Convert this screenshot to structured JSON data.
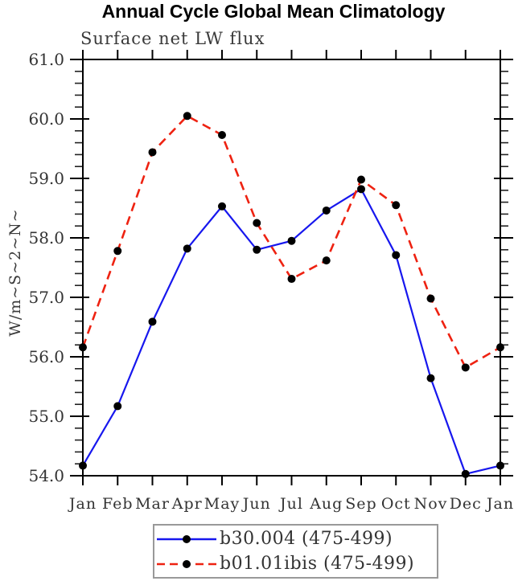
{
  "chart_data": {
    "type": "line",
    "title": "Annual Cycle Global Mean Climatology",
    "subtitle": "Surface net LW flux",
    "xlabel": "",
    "ylabel": "W/m~S~2~N~",
    "categories": [
      "Jan",
      "Feb",
      "Mar",
      "Apr",
      "May",
      "Jun",
      "Jul",
      "Aug",
      "Sep",
      "Oct",
      "Nov",
      "Dec",
      "Jan"
    ],
    "ylim": [
      54.0,
      61.0
    ],
    "ytick_interval": 1.0,
    "ytick_minor_interval": 0.2,
    "ytick_labels": [
      "54.0",
      "55.0",
      "56.0",
      "57.0",
      "58.0",
      "59.0",
      "60.0",
      "61.0"
    ],
    "grid": false,
    "legend_position": "bottom-center",
    "frame_color": "#000000",
    "series": [
      {
        "name": "b30.004 (475-499)",
        "color": "#1717ee",
        "style": "solid",
        "marker": "filled-circle",
        "marker_color": "#000000",
        "values": [
          54.17,
          55.17,
          56.59,
          57.82,
          58.53,
          57.8,
          57.95,
          58.46,
          58.82,
          57.71,
          55.64,
          54.03,
          54.17
        ]
      },
      {
        "name": "b01.01ibis (475-499)",
        "color": "#ee2211",
        "style": "dashed",
        "marker": "filled-circle",
        "marker_color": "#000000",
        "values": [
          56.16,
          57.78,
          59.44,
          60.05,
          59.73,
          58.25,
          57.31,
          57.62,
          58.98,
          58.55,
          56.98,
          55.82,
          56.16
        ]
      }
    ]
  }
}
